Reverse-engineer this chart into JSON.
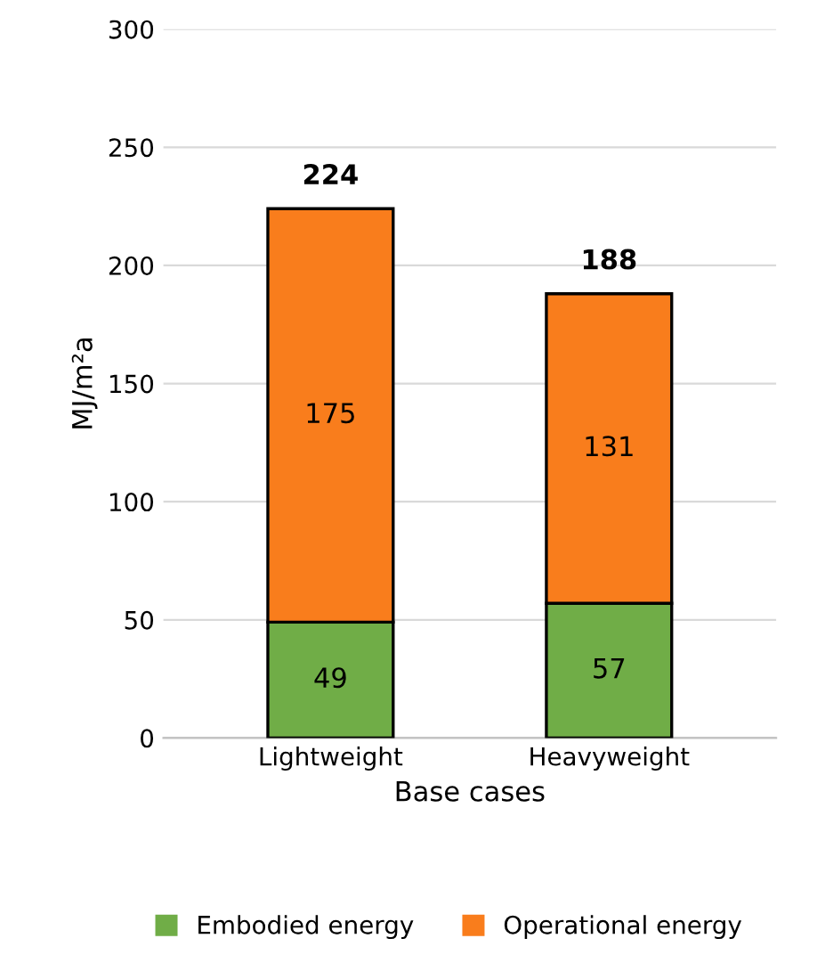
{
  "chart_data": {
    "type": "bar",
    "stacked": true,
    "categories": [
      "Lightweight",
      "Heavyweight"
    ],
    "series": [
      {
        "name": "Embodied energy",
        "color": "#70ad47",
        "values": [
          49,
          57
        ]
      },
      {
        "name": "Operational energy",
        "color": "#f97d1c",
        "values": [
          175,
          131
        ]
      }
    ],
    "totals": [
      "224",
      "188"
    ],
    "data_labels": true,
    "xlabel": "Base cases",
    "ylabel": "MJ/m²a",
    "ylim": [
      0,
      300
    ],
    "yticks": [
      0,
      50,
      100,
      150,
      200,
      250,
      300
    ],
    "grid": "y",
    "legend": "bottom"
  }
}
